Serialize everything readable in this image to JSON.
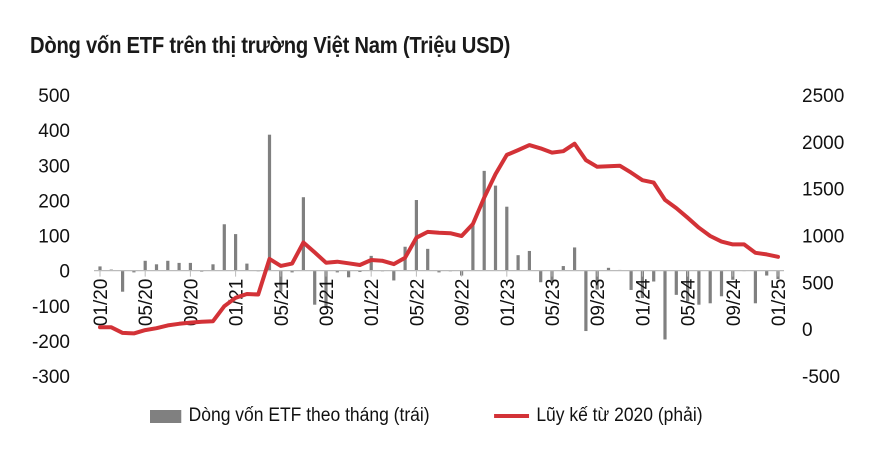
{
  "chart_data": {
    "type": "bar+line",
    "title": "Dòng vốn ETF trên thị trường Việt Nam (Triệu USD)",
    "categories": [
      "01/20",
      "02/20",
      "03/20",
      "04/20",
      "05/20",
      "06/20",
      "07/20",
      "08/20",
      "09/20",
      "10/20",
      "11/20",
      "12/20",
      "01/21",
      "02/21",
      "03/21",
      "04/21",
      "05/21",
      "06/21",
      "07/21",
      "08/21",
      "09/21",
      "10/21",
      "11/21",
      "12/21",
      "01/22",
      "02/22",
      "03/22",
      "04/22",
      "05/22",
      "06/22",
      "07/22",
      "08/22",
      "09/22",
      "10/22",
      "11/22",
      "12/22",
      "01/23",
      "02/23",
      "03/23",
      "04/23",
      "05/23",
      "06/23",
      "07/23",
      "08/23",
      "09/23",
      "10/23",
      "11/23",
      "12/23",
      "01/24",
      "02/24",
      "03/24",
      "04/24",
      "05/24",
      "06/24",
      "07/24",
      "08/24",
      "09/24",
      "10/24",
      "11/24",
      "12/24",
      "01/25"
    ],
    "x_tick_labels": [
      "01/20",
      "05/20",
      "09/20",
      "01/21",
      "05/21",
      "09/21",
      "01/22",
      "05/22",
      "09/22",
      "01/23",
      "05/23",
      "09/23",
      "01/24",
      "05/24",
      "09/24",
      "01/25"
    ],
    "left_axis": {
      "ylim": [
        -300,
        500
      ],
      "ticks": [
        -300,
        -200,
        -100,
        0,
        100,
        200,
        300,
        400,
        500
      ]
    },
    "right_axis": {
      "ylim": [
        -500,
        2500
      ],
      "ticks": [
        -500,
        0,
        500,
        1000,
        1500,
        2000,
        2500
      ]
    },
    "series": [
      {
        "name": "Dòng vốn ETF theo tháng (trái)",
        "type": "bar",
        "axis": "left",
        "color": "#808080",
        "values": [
          12,
          3,
          -60,
          -5,
          28,
          18,
          28,
          22,
          22,
          -3,
          18,
          132,
          104,
          20,
          -2,
          387,
          -60,
          -5,
          209,
          -97,
          -106,
          -5,
          -19,
          -4,
          42,
          -2,
          -28,
          68,
          201,
          62,
          -5,
          -2,
          -14,
          129,
          284,
          242,
          182,
          44,
          56,
          -33,
          -35,
          13,
          66,
          -172,
          -54,
          8,
          2,
          -55,
          -78,
          -31,
          -196,
          -69,
          -88,
          -97,
          -93,
          -73,
          -26,
          -1,
          -93,
          -14,
          -24
        ]
      },
      {
        "name": "Lũy kế từ 2020 (phải)",
        "type": "line",
        "axis": "right",
        "color": "#d33237",
        "values": [
          20,
          20,
          -40,
          -45,
          -10,
          10,
          40,
          57,
          70,
          80,
          85,
          245,
          335,
          375,
          370,
          750,
          675,
          700,
          925,
          820,
          710,
          720,
          703,
          685,
          738,
          730,
          695,
          763,
          977,
          1038,
          1030,
          1025,
          995,
          1123,
          1405,
          1656,
          1860,
          1912,
          1965,
          1930,
          1885,
          1900,
          1980,
          1805,
          1733,
          1740,
          1745,
          1672,
          1590,
          1565,
          1380,
          1293,
          1190,
          1083,
          995,
          935,
          905,
          905,
          815,
          798,
          773
        ]
      }
    ],
    "legend": "bottom",
    "grid": false
  }
}
